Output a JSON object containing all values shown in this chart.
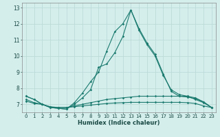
{
  "xlabel": "Humidex (Indice chaleur)",
  "x": [
    0,
    1,
    2,
    3,
    4,
    5,
    6,
    7,
    8,
    9,
    10,
    11,
    12,
    13,
    14,
    15,
    16,
    17,
    18,
    19,
    20,
    21,
    22,
    23
  ],
  "line1": [
    7.5,
    7.3,
    7.0,
    6.8,
    6.75,
    6.7,
    7.1,
    7.7,
    8.4,
    9.0,
    10.3,
    11.5,
    12.0,
    12.85,
    11.6,
    10.7,
    10.0,
    8.8,
    7.9,
    7.6,
    7.5,
    7.4,
    7.15,
    6.8
  ],
  "line2": [
    7.5,
    7.3,
    7.0,
    6.8,
    6.75,
    6.7,
    7.0,
    7.4,
    7.9,
    9.3,
    9.5,
    10.2,
    11.2,
    12.85,
    11.7,
    10.8,
    10.1,
    8.9,
    7.8,
    7.5,
    7.5,
    7.3,
    7.1,
    6.8
  ],
  "line3": [
    7.3,
    7.1,
    7.0,
    6.85,
    6.8,
    6.8,
    6.9,
    7.0,
    7.1,
    7.2,
    7.3,
    7.35,
    7.4,
    7.45,
    7.5,
    7.5,
    7.5,
    7.5,
    7.5,
    7.5,
    7.45,
    7.35,
    7.15,
    6.8
  ],
  "line4": [
    7.2,
    7.05,
    7.0,
    6.82,
    6.8,
    6.8,
    6.85,
    6.9,
    6.95,
    7.0,
    7.05,
    7.08,
    7.1,
    7.12,
    7.12,
    7.12,
    7.12,
    7.12,
    7.12,
    7.12,
    7.1,
    7.05,
    6.9,
    6.8
  ],
  "line_color": "#1a7a6e",
  "bg_color": "#d4eeec",
  "grid_color": "#b8d8d5",
  "ylim": [
    6.5,
    13.3
  ],
  "yticks": [
    7,
    8,
    9,
    10,
    11,
    12,
    13
  ],
  "xtick_fontsize": 5.0,
  "ytick_fontsize": 5.5,
  "xlabel_fontsize": 6.0
}
